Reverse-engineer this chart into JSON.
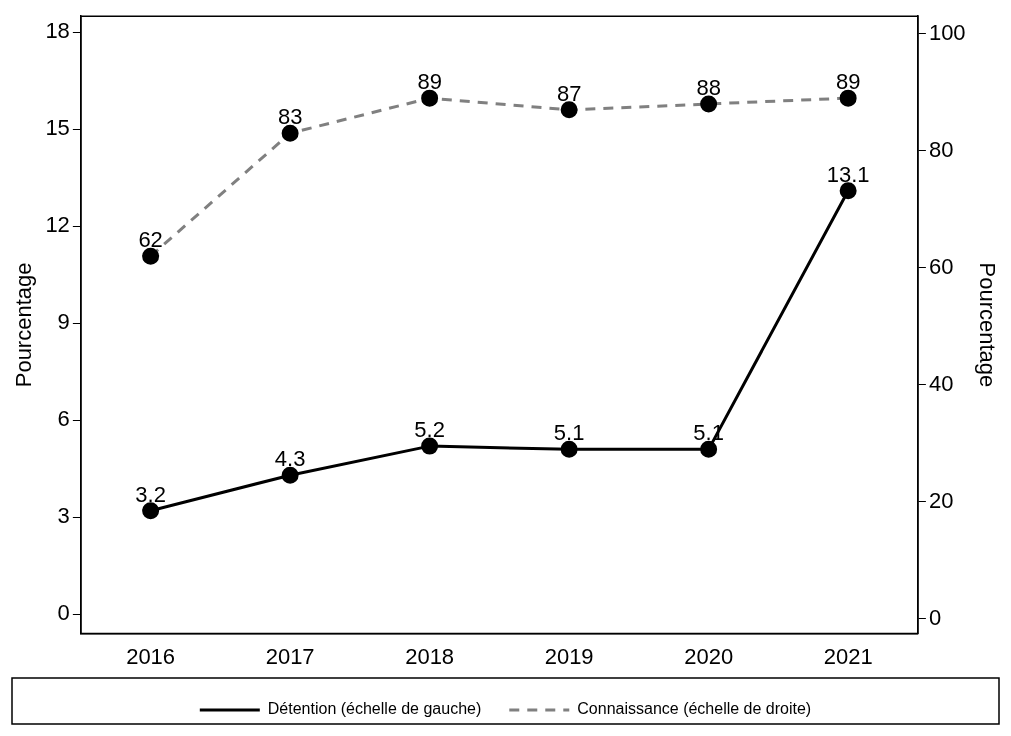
{
  "chart_data": {
    "type": "line",
    "categories": [
      "2016",
      "2017",
      "2018",
      "2019",
      "2020",
      "2021"
    ],
    "ylabel": "Pourcentage",
    "y2label": "Pourcentage",
    "ylim": [
      -0.6,
      18.5
    ],
    "yticks": [
      0,
      3,
      6,
      9,
      12,
      15,
      18
    ],
    "y2lim": [
      -2.5,
      103
    ],
    "y2ticks": [
      0,
      20,
      40,
      60,
      80,
      100
    ],
    "series": [
      {
        "name": "Détention (échelle de gauche)",
        "color": "#000000",
        "values": [
          3.2,
          4.3,
          5.2,
          5.1,
          5.1,
          13.1
        ],
        "line_style": "solid"
      },
      {
        "name": "Connaissance (échelle de droite)",
        "color": "#808080",
        "values": [
          62,
          83,
          89,
          87,
          88,
          89
        ],
        "axis": "y2",
        "line_style": "dashed"
      }
    ],
    "marker": "circle",
    "data_labels": true,
    "grid": false,
    "legend": "bottom"
  }
}
